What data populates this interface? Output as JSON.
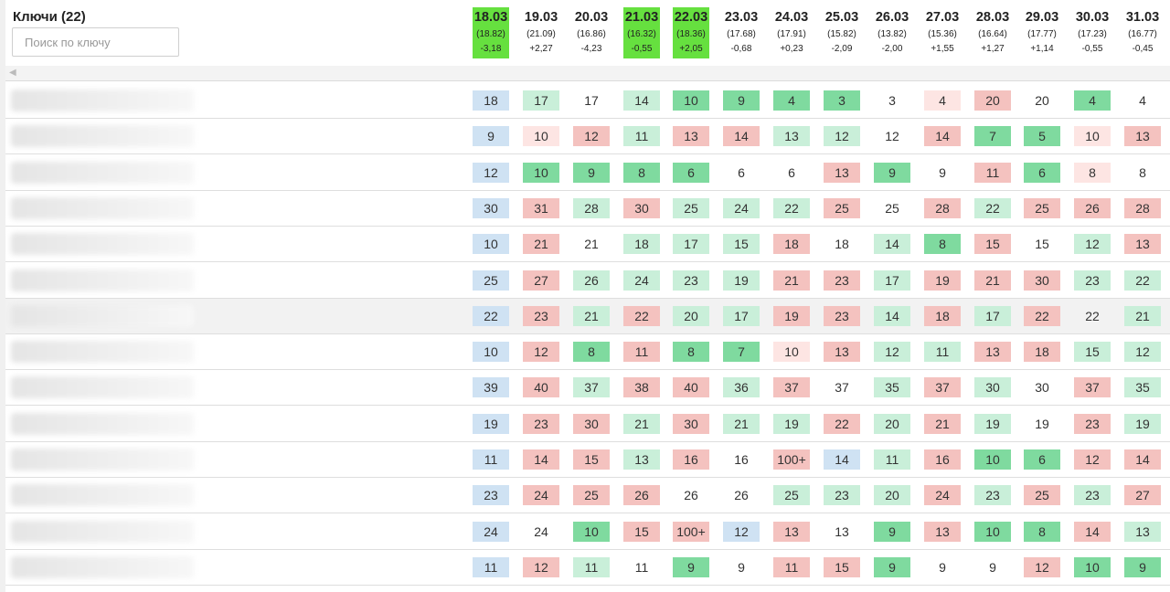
{
  "title": "Ключи (22)",
  "search": {
    "placeholder": "Поиск по ключу",
    "value": ""
  },
  "colors": {
    "highlight": "#66e03f",
    "blue": "#cfe2f3",
    "lgreen": "#c9efd9",
    "green": "#7fda9f",
    "red": "#f4c2bf",
    "lred": "#fde5e3"
  },
  "scroll_left_icon": "chevron-left-icon",
  "dates": [
    {
      "date": "18.03",
      "avg": "(18.82)",
      "change": "-3,18",
      "highlight": true
    },
    {
      "date": "19.03",
      "avg": "(21.09)",
      "change": "+2,27",
      "highlight": false
    },
    {
      "date": "20.03",
      "avg": "(16.86)",
      "change": "-4,23",
      "highlight": false
    },
    {
      "date": "21.03",
      "avg": "(16.32)",
      "change": "-0,55",
      "highlight": true
    },
    {
      "date": "22.03",
      "avg": "(18.36)",
      "change": "+2,05",
      "highlight": true
    },
    {
      "date": "23.03",
      "avg": "(17.68)",
      "change": "-0,68",
      "highlight": false
    },
    {
      "date": "24.03",
      "avg": "(17.91)",
      "change": "+0,23",
      "highlight": false
    },
    {
      "date": "25.03",
      "avg": "(15.82)",
      "change": "-2,09",
      "highlight": false
    },
    {
      "date": "26.03",
      "avg": "(13.82)",
      "change": "-2,00",
      "highlight": false
    },
    {
      "date": "27.03",
      "avg": "(15.36)",
      "change": "+1,55",
      "highlight": false
    },
    {
      "date": "28.03",
      "avg": "(16.64)",
      "change": "+1,27",
      "highlight": false
    },
    {
      "date": "29.03",
      "avg": "(17.77)",
      "change": "+1,14",
      "highlight": false
    },
    {
      "date": "30.03",
      "avg": "(17.23)",
      "change": "-0,55",
      "highlight": false
    },
    {
      "date": "31.03",
      "avg": "(16.77)",
      "change": "-0,45",
      "highlight": false
    }
  ],
  "rows": [
    {
      "hover": false,
      "cells": [
        [
          "18",
          "blue"
        ],
        [
          "17",
          "lgreen"
        ],
        [
          "17",
          "none"
        ],
        [
          "14",
          "lgreen"
        ],
        [
          "10",
          "green"
        ],
        [
          "9",
          "green"
        ],
        [
          "4",
          "green"
        ],
        [
          "3",
          "green"
        ],
        [
          "3",
          "none"
        ],
        [
          "4",
          "lred"
        ],
        [
          "20",
          "red"
        ],
        [
          "20",
          "none"
        ],
        [
          "4",
          "green"
        ],
        [
          "4",
          "none"
        ]
      ]
    },
    {
      "hover": false,
      "cells": [
        [
          "9",
          "blue"
        ],
        [
          "10",
          "lred"
        ],
        [
          "12",
          "red"
        ],
        [
          "11",
          "lgreen"
        ],
        [
          "13",
          "red"
        ],
        [
          "14",
          "red"
        ],
        [
          "13",
          "lgreen"
        ],
        [
          "12",
          "lgreen"
        ],
        [
          "12",
          "none"
        ],
        [
          "14",
          "red"
        ],
        [
          "7",
          "green"
        ],
        [
          "5",
          "green"
        ],
        [
          "10",
          "lred"
        ],
        [
          "13",
          "red"
        ]
      ]
    },
    {
      "hover": false,
      "cells": [
        [
          "12",
          "blue"
        ],
        [
          "10",
          "green"
        ],
        [
          "9",
          "green"
        ],
        [
          "8",
          "green"
        ],
        [
          "6",
          "green"
        ],
        [
          "6",
          "none"
        ],
        [
          "6",
          "none"
        ],
        [
          "13",
          "red"
        ],
        [
          "9",
          "green"
        ],
        [
          "9",
          "none"
        ],
        [
          "11",
          "red"
        ],
        [
          "6",
          "green"
        ],
        [
          "8",
          "lred"
        ],
        [
          "8",
          "none"
        ]
      ]
    },
    {
      "hover": false,
      "cells": [
        [
          "30",
          "blue"
        ],
        [
          "31",
          "red"
        ],
        [
          "28",
          "lgreen"
        ],
        [
          "30",
          "red"
        ],
        [
          "25",
          "lgreen"
        ],
        [
          "24",
          "lgreen"
        ],
        [
          "22",
          "lgreen"
        ],
        [
          "25",
          "red"
        ],
        [
          "25",
          "none"
        ],
        [
          "28",
          "red"
        ],
        [
          "22",
          "lgreen"
        ],
        [
          "25",
          "red"
        ],
        [
          "26",
          "red"
        ],
        [
          "28",
          "red"
        ]
      ]
    },
    {
      "hover": false,
      "cells": [
        [
          "10",
          "blue"
        ],
        [
          "21",
          "red"
        ],
        [
          "21",
          "none"
        ],
        [
          "18",
          "lgreen"
        ],
        [
          "17",
          "lgreen"
        ],
        [
          "15",
          "lgreen"
        ],
        [
          "18",
          "red"
        ],
        [
          "18",
          "none"
        ],
        [
          "14",
          "lgreen"
        ],
        [
          "8",
          "green"
        ],
        [
          "15",
          "red"
        ],
        [
          "15",
          "none"
        ],
        [
          "12",
          "lgreen"
        ],
        [
          "13",
          "red"
        ]
      ]
    },
    {
      "hover": false,
      "cells": [
        [
          "25",
          "blue"
        ],
        [
          "27",
          "red"
        ],
        [
          "26",
          "lgreen"
        ],
        [
          "24",
          "lgreen"
        ],
        [
          "23",
          "lgreen"
        ],
        [
          "19",
          "lgreen"
        ],
        [
          "21",
          "red"
        ],
        [
          "23",
          "red"
        ],
        [
          "17",
          "lgreen"
        ],
        [
          "19",
          "red"
        ],
        [
          "21",
          "red"
        ],
        [
          "30",
          "red"
        ],
        [
          "23",
          "lgreen"
        ],
        [
          "22",
          "lgreen"
        ]
      ]
    },
    {
      "hover": true,
      "cells": [
        [
          "22",
          "blue"
        ],
        [
          "23",
          "red"
        ],
        [
          "21",
          "lgreen"
        ],
        [
          "22",
          "red"
        ],
        [
          "20",
          "lgreen"
        ],
        [
          "17",
          "lgreen"
        ],
        [
          "19",
          "red"
        ],
        [
          "23",
          "red"
        ],
        [
          "14",
          "lgreen"
        ],
        [
          "18",
          "red"
        ],
        [
          "17",
          "lgreen"
        ],
        [
          "22",
          "red"
        ],
        [
          "22",
          "none"
        ],
        [
          "21",
          "lgreen"
        ]
      ]
    },
    {
      "hover": false,
      "cells": [
        [
          "10",
          "blue"
        ],
        [
          "12",
          "red"
        ],
        [
          "8",
          "green"
        ],
        [
          "11",
          "red"
        ],
        [
          "8",
          "green"
        ],
        [
          "7",
          "green"
        ],
        [
          "10",
          "lred"
        ],
        [
          "13",
          "red"
        ],
        [
          "12",
          "lgreen"
        ],
        [
          "11",
          "lgreen"
        ],
        [
          "13",
          "red"
        ],
        [
          "18",
          "red"
        ],
        [
          "15",
          "lgreen"
        ],
        [
          "12",
          "lgreen"
        ]
      ]
    },
    {
      "hover": false,
      "cells": [
        [
          "39",
          "blue"
        ],
        [
          "40",
          "red"
        ],
        [
          "37",
          "lgreen"
        ],
        [
          "38",
          "red"
        ],
        [
          "40",
          "red"
        ],
        [
          "36",
          "lgreen"
        ],
        [
          "37",
          "red"
        ],
        [
          "37",
          "none"
        ],
        [
          "35",
          "lgreen"
        ],
        [
          "37",
          "red"
        ],
        [
          "30",
          "lgreen"
        ],
        [
          "30",
          "none"
        ],
        [
          "37",
          "red"
        ],
        [
          "35",
          "lgreen"
        ]
      ]
    },
    {
      "hover": false,
      "cells": [
        [
          "19",
          "blue"
        ],
        [
          "23",
          "red"
        ],
        [
          "30",
          "red"
        ],
        [
          "21",
          "lgreen"
        ],
        [
          "30",
          "red"
        ],
        [
          "21",
          "lgreen"
        ],
        [
          "19",
          "lgreen"
        ],
        [
          "22",
          "red"
        ],
        [
          "20",
          "lgreen"
        ],
        [
          "21",
          "red"
        ],
        [
          "19",
          "lgreen"
        ],
        [
          "19",
          "none"
        ],
        [
          "23",
          "red"
        ],
        [
          "19",
          "lgreen"
        ]
      ]
    },
    {
      "hover": false,
      "cells": [
        [
          "11",
          "blue"
        ],
        [
          "14",
          "red"
        ],
        [
          "15",
          "red"
        ],
        [
          "13",
          "lgreen"
        ],
        [
          "16",
          "red"
        ],
        [
          "16",
          "none"
        ],
        [
          "100+",
          "red"
        ],
        [
          "14",
          "blue"
        ],
        [
          "11",
          "lgreen"
        ],
        [
          "16",
          "red"
        ],
        [
          "10",
          "green"
        ],
        [
          "6",
          "green"
        ],
        [
          "12",
          "red"
        ],
        [
          "14",
          "red"
        ]
      ]
    },
    {
      "hover": false,
      "cells": [
        [
          "23",
          "blue"
        ],
        [
          "24",
          "red"
        ],
        [
          "25",
          "red"
        ],
        [
          "26",
          "red"
        ],
        [
          "26",
          "none"
        ],
        [
          "26",
          "none"
        ],
        [
          "25",
          "lgreen"
        ],
        [
          "23",
          "lgreen"
        ],
        [
          "20",
          "lgreen"
        ],
        [
          "24",
          "red"
        ],
        [
          "23",
          "lgreen"
        ],
        [
          "25",
          "red"
        ],
        [
          "23",
          "lgreen"
        ],
        [
          "27",
          "red"
        ]
      ]
    },
    {
      "hover": false,
      "cells": [
        [
          "24",
          "blue"
        ],
        [
          "24",
          "none"
        ],
        [
          "10",
          "green"
        ],
        [
          "15",
          "red"
        ],
        [
          "100+",
          "red"
        ],
        [
          "12",
          "blue"
        ],
        [
          "13",
          "red"
        ],
        [
          "13",
          "none"
        ],
        [
          "9",
          "green"
        ],
        [
          "13",
          "red"
        ],
        [
          "10",
          "green"
        ],
        [
          "8",
          "green"
        ],
        [
          "14",
          "red"
        ],
        [
          "13",
          "lgreen"
        ]
      ]
    },
    {
      "hover": false,
      "cells": [
        [
          "11",
          "blue"
        ],
        [
          "12",
          "red"
        ],
        [
          "11",
          "lgreen"
        ],
        [
          "11",
          "none"
        ],
        [
          "9",
          "green"
        ],
        [
          "9",
          "none"
        ],
        [
          "11",
          "red"
        ],
        [
          "15",
          "red"
        ],
        [
          "9",
          "green"
        ],
        [
          "9",
          "none"
        ],
        [
          "9",
          "none"
        ],
        [
          "12",
          "red"
        ],
        [
          "10",
          "green"
        ],
        [
          "9",
          "green"
        ]
      ]
    }
  ]
}
